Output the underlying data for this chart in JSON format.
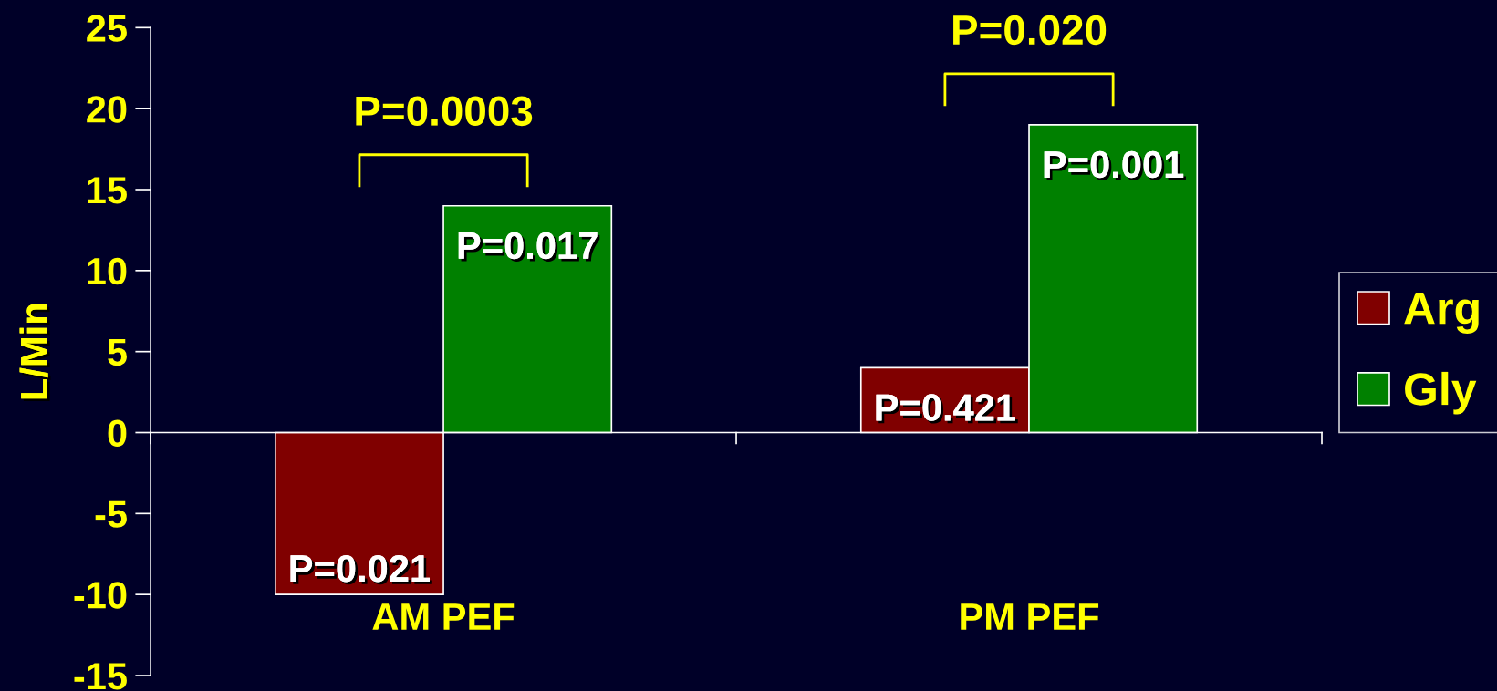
{
  "chart_data": {
    "type": "bar",
    "ylabel": "L/Min",
    "categories": [
      "AM PEF",
      "PM PEF"
    ],
    "series": [
      {
        "name": "Arg",
        "color": "#800000",
        "values": [
          -10,
          4
        ]
      },
      {
        "name": "Gly",
        "color": "#008000",
        "values": [
          14,
          19
        ]
      }
    ],
    "ylim": [
      -15,
      25
    ],
    "yticks": [
      -15,
      -10,
      -5,
      0,
      5,
      10,
      15,
      20,
      25
    ],
    "legend": "right",
    "annotations": [
      {
        "text": "P=0.021",
        "x": "AM PEF",
        "y": -10
      },
      {
        "text": "P=0.017",
        "x": "AM PEF",
        "y": 14
      },
      {
        "text": "P=0.421",
        "x": "PM PEF",
        "y": 4
      },
      {
        "text": "P=0.001",
        "x": "PM PEF",
        "y": 19
      },
      "P=0.0003",
      "P=0.020"
    ]
  }
}
